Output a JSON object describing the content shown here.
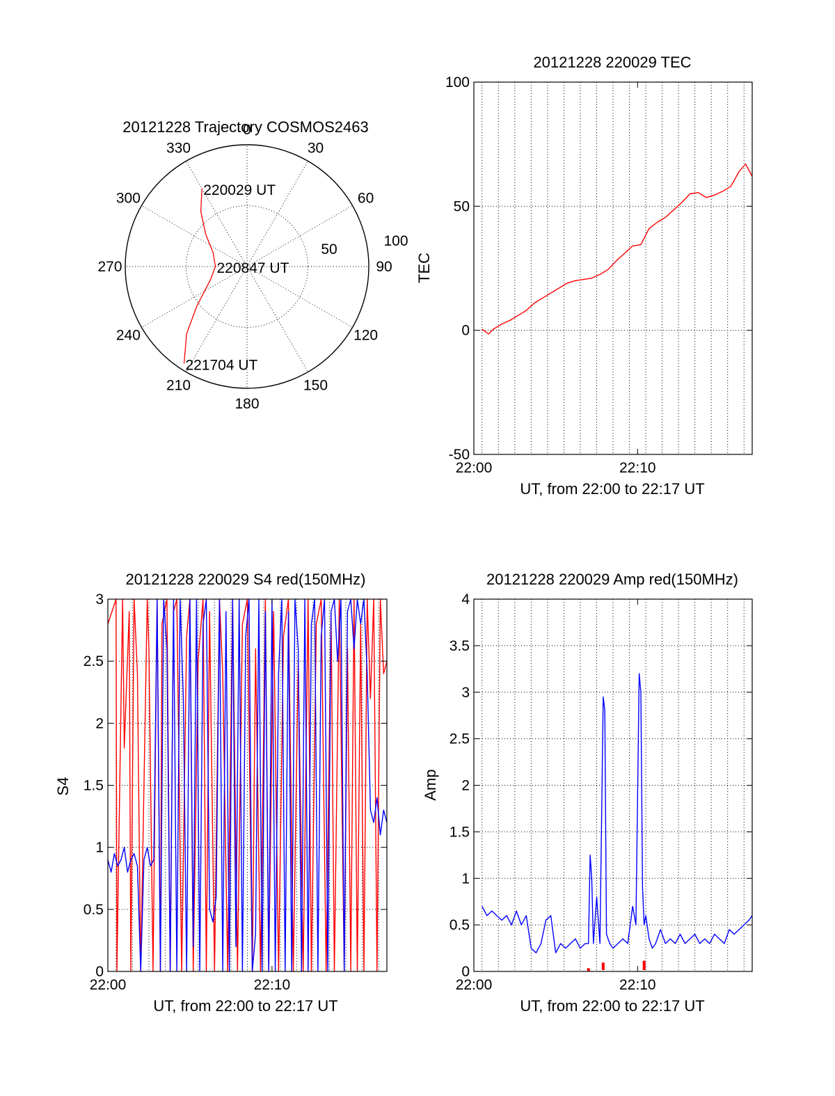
{
  "chart_data": [
    {
      "id": "polar",
      "type": "polar",
      "title": "20121228 Trajectory COSMOS2463",
      "angle_labels": [
        "0",
        "30",
        "60",
        "90",
        "120",
        "150",
        "180",
        "210",
        "240",
        "270",
        "300",
        "330"
      ],
      "radial_ticks": [
        50,
        100
      ],
      "radial_lim": [
        0,
        100
      ],
      "series": [
        {
          "color": "#ff0000",
          "points": [
            [
              330,
              74
            ],
            [
              320,
              59
            ],
            [
              308,
              43
            ],
            [
              292,
              30
            ],
            [
              270,
              26
            ],
            [
              250,
              32
            ],
            [
              232,
              52
            ],
            [
              222,
              74
            ],
            [
              213,
              95
            ]
          ]
        }
      ],
      "annotations": [
        {
          "text": "220029 UT",
          "az": 330,
          "el": 74
        },
        {
          "text": "220847 UT",
          "az": 270,
          "el": 26
        },
        {
          "text": "221704 UT",
          "az": 213,
          "el": 95
        }
      ]
    },
    {
      "id": "tec",
      "type": "line",
      "title": "20121228 220029 TEC",
      "xlabel": "UT, from 22:00 to 22:17 UT",
      "ylabel": "TEC",
      "xlim": [
        0,
        17
      ],
      "ylim": [
        -50,
        100
      ],
      "xticks": [
        {
          "v": 0,
          "label": "22:00"
        },
        {
          "v": 10,
          "label": "22:10"
        }
      ],
      "yticks": [
        {
          "v": -50,
          "label": "-50"
        },
        {
          "v": 0,
          "label": "0"
        },
        {
          "v": 50,
          "label": "50"
        },
        {
          "v": 100,
          "label": "100"
        }
      ],
      "xgrid": [
        0.5,
        1.5,
        2.5,
        3.5,
        4.5,
        5.5,
        6.5,
        7.5,
        8.5,
        9.5,
        10.5,
        11.5,
        12.5,
        13.5,
        14.5,
        15.5,
        16.5
      ],
      "ygrid": [
        0,
        50
      ],
      "series": [
        {
          "color": "#ff0000",
          "x": [
            0.5,
            0.9,
            1.2,
            1.7,
            2.2,
            2.7,
            3.2,
            3.7,
            4.2,
            4.7,
            5.2,
            5.7,
            6.2,
            6.7,
            7.2,
            7.7,
            8.2,
            8.7,
            9.2,
            9.7,
            10.2,
            10.7,
            11.2,
            11.7,
            12.2,
            12.7,
            13.2,
            13.7,
            14.2,
            14.7,
            15.2,
            15.7,
            16.2,
            16.6,
            17.0
          ],
          "y": [
            0.5,
            -1.5,
            0.5,
            2.5,
            4,
            6,
            8,
            11,
            13,
            15,
            17,
            19,
            20,
            20.5,
            21,
            22.5,
            24.5,
            28,
            31,
            34,
            34.5,
            41,
            43.5,
            45.5,
            48.5,
            51.5,
            55,
            55.5,
            53.5,
            54.5,
            56,
            58,
            64,
            67,
            62
          ]
        }
      ]
    },
    {
      "id": "s4",
      "type": "line",
      "title": "20121228 220029 S4 red(150MHz)",
      "xlabel": "UT, from 22:00 to 22:17 UT",
      "ylabel": "S4",
      "xlim": [
        0,
        17
      ],
      "ylim": [
        0,
        3
      ],
      "xticks": [
        {
          "v": 0,
          "label": "22:00"
        },
        {
          "v": 10,
          "label": "22:10"
        }
      ],
      "yticks": [
        {
          "v": 0,
          "label": "0"
        },
        {
          "v": 0.5,
          "label": "0.5"
        },
        {
          "v": 1,
          "label": "1"
        },
        {
          "v": 1.5,
          "label": "1.5"
        },
        {
          "v": 2,
          "label": "2"
        },
        {
          "v": 2.5,
          "label": "2.5"
        },
        {
          "v": 3,
          "label": "3"
        }
      ],
      "xgrid": [
        0.5,
        1.5,
        2.5,
        3.5,
        4.5,
        5.5,
        6.5,
        7.5,
        8.5,
        9.5,
        10.5,
        11.5,
        12.5,
        13.5,
        14.5,
        15.5,
        16.5
      ],
      "ygrid": [
        0.5,
        1,
        1.5,
        2,
        2.5
      ],
      "series": [
        {
          "color": "#ff0000",
          "x": [
            0.0,
            0.5,
            0.55,
            0.9,
            1.0,
            1.3,
            1.4,
            1.6,
            1.8,
            2.0,
            2.4,
            2.5,
            2.75,
            3.0,
            3.2,
            3.3,
            3.6,
            3.8,
            4.0,
            4.2,
            4.5,
            4.8,
            5.0,
            5.2,
            5.5,
            5.8,
            6.0,
            6.2,
            6.5,
            6.8,
            7.0,
            7.3,
            7.6,
            7.9,
            8.2,
            8.5,
            8.8,
            9.0,
            9.3,
            9.6,
            9.8,
            10.1,
            10.4,
            10.7,
            11.0,
            11.3,
            11.6,
            11.9,
            12.2,
            12.4,
            12.7,
            13.0,
            13.3,
            13.6,
            13.8,
            14.1,
            14.4,
            14.6,
            14.8,
            15.0,
            15.2,
            15.4,
            15.6,
            15.8,
            16.0,
            16.2,
            16.4,
            16.6,
            16.8,
            17.0
          ],
          "y": [
            2.8,
            3.0,
            0.0,
            3.0,
            1.8,
            2.9,
            0.0,
            3.0,
            2.4,
            0.0,
            3.0,
            2.6,
            0.0,
            3.0,
            0.0,
            2.8,
            3.0,
            0.0,
            2.9,
            3.0,
            0.0,
            2.7,
            3.0,
            0.0,
            2.5,
            3.0,
            0.0,
            2.9,
            0.0,
            3.0,
            2.4,
            0.0,
            3.0,
            0.0,
            2.8,
            3.0,
            0.0,
            2.6,
            0.0,
            3.0,
            0.0,
            2.9,
            0.0,
            2.7,
            3.0,
            0.0,
            2.5,
            0.0,
            3.0,
            0.0,
            2.8,
            3.0,
            0.0,
            2.9,
            0.0,
            3.0,
            0.0,
            2.6,
            0.0,
            3.0,
            0.0,
            2.8,
            0.0,
            3.0,
            2.2,
            3.0,
            0.0,
            3.0,
            2.4,
            2.5
          ]
        },
        {
          "color": "#0000ff",
          "x": [
            0.0,
            0.2,
            0.4,
            0.6,
            0.8,
            1.0,
            1.2,
            1.4,
            1.6,
            1.8,
            2.0,
            2.2,
            2.4,
            2.6,
            2.8,
            3.0,
            3.2,
            3.4,
            3.6,
            3.8,
            4.0,
            4.2,
            4.4,
            4.6,
            4.8,
            5.0,
            5.2,
            5.4,
            5.6,
            5.8,
            6.0,
            6.2,
            6.4,
            6.6,
            6.8,
            7.0,
            7.2,
            7.4,
            7.6,
            7.8,
            8.0,
            8.2,
            8.4,
            8.6,
            8.8,
            9.0,
            9.2,
            9.4,
            9.6,
            9.8,
            10.0,
            10.2,
            10.4,
            10.6,
            10.8,
            11.0,
            11.2,
            11.4,
            11.6,
            11.8,
            12.0,
            12.2,
            12.4,
            12.6,
            12.8,
            13.0,
            13.2,
            13.4,
            13.6,
            13.8,
            14.0,
            14.2,
            14.4,
            14.6,
            14.8,
            15.0,
            15.2,
            15.4,
            15.6,
            15.8,
            16.0,
            16.2,
            16.4,
            16.6,
            16.8,
            17.0
          ],
          "y": [
            0.9,
            0.8,
            0.95,
            0.85,
            0.9,
            1.0,
            0.8,
            0.9,
            0.95,
            0.85,
            0.0,
            0.9,
            1.0,
            0.85,
            0.9,
            3.0,
            0.0,
            3.0,
            2.6,
            0.0,
            3.0,
            0.0,
            3.0,
            2.2,
            0.0,
            3.0,
            0.2,
            3.0,
            0.0,
            2.8,
            3.0,
            0.5,
            0.4,
            0.6,
            3.0,
            0.0,
            2.9,
            0.0,
            3.0,
            0.2,
            3.0,
            0.0,
            2.7,
            3.0,
            0.0,
            0.3,
            3.0,
            0.0,
            2.9,
            0.0,
            3.0,
            0.0,
            2.4,
            3.0,
            0.0,
            2.9,
            0.0,
            3.0,
            2.6,
            0.0,
            3.0,
            0.0,
            2.8,
            3.0,
            0.0,
            2.7,
            3.0,
            0.0,
            2.9,
            3.0,
            2.5,
            3.0,
            0.0,
            2.9,
            3.0,
            2.6,
            3.0,
            2.8,
            3.0,
            2.4,
            1.3,
            1.2,
            1.4,
            1.1,
            1.3,
            1.2
          ]
        }
      ]
    },
    {
      "id": "amp",
      "type": "line",
      "title": "20121228 220029 Amp red(150MHz)",
      "xlabel": "UT, from 22:00 to 22:17 UT",
      "ylabel": "Amp",
      "xlim": [
        0,
        17
      ],
      "ylim": [
        0,
        4
      ],
      "xticks": [
        {
          "v": 0,
          "label": "22:00"
        },
        {
          "v": 10,
          "label": "22:10"
        }
      ],
      "yticks": [
        {
          "v": 0,
          "label": "0"
        },
        {
          "v": 0.5,
          "label": "0.5"
        },
        {
          "v": 1,
          "label": "1"
        },
        {
          "v": 1.5,
          "label": "1.5"
        },
        {
          "v": 2,
          "label": "2"
        },
        {
          "v": 2.5,
          "label": "2.5"
        },
        {
          "v": 3,
          "label": "3"
        },
        {
          "v": 3.5,
          "label": "3.5"
        },
        {
          "v": 4,
          "label": "4"
        }
      ],
      "xgrid": [
        0.5,
        1.5,
        2.5,
        3.5,
        4.5,
        5.5,
        6.5,
        7.5,
        8.5,
        9.5,
        10.5,
        11.5,
        12.5,
        13.5,
        14.5,
        15.5,
        16.5
      ],
      "ygrid": [
        0.5,
        1,
        1.5,
        2,
        2.5,
        3,
        3.5
      ],
      "series": [
        {
          "color": "#0000ff",
          "x": [
            0.5,
            0.8,
            1.1,
            1.4,
            1.7,
            2.0,
            2.3,
            2.6,
            2.9,
            3.2,
            3.5,
            3.8,
            4.1,
            4.4,
            4.7,
            5.0,
            5.3,
            5.6,
            5.9,
            6.2,
            6.5,
            6.8,
            7.0,
            7.1,
            7.2,
            7.3,
            7.5,
            7.7,
            7.9,
            8.0,
            8.1,
            8.2,
            8.3,
            8.5,
            8.8,
            9.1,
            9.4,
            9.7,
            9.9,
            10.1,
            10.2,
            10.3,
            10.4,
            10.5,
            10.7,
            10.9,
            11.1,
            11.4,
            11.7,
            12.0,
            12.3,
            12.6,
            12.9,
            13.2,
            13.5,
            13.8,
            14.1,
            14.4,
            14.7,
            15.0,
            15.3,
            15.6,
            15.9,
            16.2,
            16.5,
            16.8,
            17.0
          ],
          "y": [
            0.7,
            0.6,
            0.65,
            0.6,
            0.55,
            0.6,
            0.5,
            0.65,
            0.5,
            0.6,
            0.25,
            0.2,
            0.3,
            0.55,
            0.6,
            0.2,
            0.3,
            0.25,
            0.3,
            0.35,
            0.25,
            0.3,
            0.3,
            1.25,
            1.0,
            0.3,
            0.8,
            0.3,
            2.95,
            2.8,
            0.4,
            0.35,
            0.3,
            0.25,
            0.3,
            0.35,
            0.3,
            0.7,
            0.5,
            3.2,
            3.0,
            0.9,
            0.5,
            0.6,
            0.35,
            0.25,
            0.3,
            0.45,
            0.3,
            0.35,
            0.3,
            0.4,
            0.3,
            0.35,
            0.4,
            0.3,
            0.35,
            0.3,
            0.4,
            0.35,
            0.3,
            0.45,
            0.4,
            0.45,
            0.5,
            0.55,
            0.6
          ]
        },
        {
          "color": "#ff0000",
          "x": [
            7.0,
            7.9,
            10.4
          ],
          "y": [
            0.02,
            0.08,
            0.1
          ]
        }
      ]
    }
  ]
}
